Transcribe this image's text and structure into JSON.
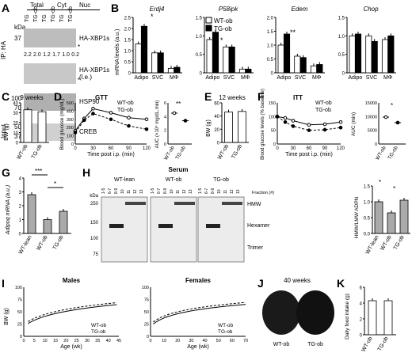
{
  "panel_labels": [
    "A",
    "B",
    "C",
    "D",
    "E",
    "F",
    "G",
    "H",
    "I",
    "J",
    "K"
  ],
  "A": {
    "groups": [
      "Total",
      "Cyt",
      "Nuc"
    ],
    "lanes": [
      "TG",
      "TG-ob",
      "TG",
      "TG-ob",
      "TG",
      "TG-ob"
    ],
    "kda": [
      "kDa",
      "37",
      "100",
      "70",
      "50",
      "37"
    ],
    "ip_label": "IP: HA",
    "input_label": "Input",
    "bands": [
      "HA-XBP1s",
      "HA-XBP1s\n(l.e.)",
      "HSP90",
      "CREB"
    ],
    "ratios": [
      "2.2",
      "2.0",
      "1.2",
      "1.7",
      "1.0",
      "0.2"
    ],
    "star": "*"
  },
  "B": {
    "ylabel": "mRNA levels (a.u.)",
    "legend": [
      "WT-ob",
      "TG-ob"
    ],
    "genes": [
      "Erdj4",
      "P58ipk",
      "Edem",
      "Chop"
    ],
    "categories": [
      "Adipo",
      "SVC",
      "MΦ"
    ],
    "stars": [
      "*",
      "*",
      "**"
    ]
  },
  "C": {
    "title": "9 weeks",
    "ylabel": "BW (g)",
    "categories": [
      "WT-ob",
      "TG-ob"
    ],
    "yticks": [
      "0",
      "10",
      "20",
      "30",
      "40"
    ]
  },
  "D": {
    "title": "GTT",
    "ylabel": "Blood glucose (mg/dL)",
    "xlabel": "Time post i.p. (min)",
    "legend": [
      "WT-ob",
      "TG-ob"
    ],
    "xticks": [
      "0",
      "30",
      "60",
      "90",
      "120"
    ],
    "yticks": [
      "0",
      "100",
      "200",
      "300",
      "400",
      "500"
    ],
    "auc_ylabel": "AUC (×10⁴ mg/dL.min)",
    "auc_cats": [
      "WT-ob",
      "TG-ob"
    ],
    "auc_yticks": [
      "0",
      "2",
      "4",
      "6"
    ],
    "stars": "**"
  },
  "E": {
    "title": "12 weeks",
    "ylabel": "BW (g)",
    "categories": [
      "WT-ob",
      "TG-ob"
    ],
    "yticks": [
      "0",
      "20",
      "40",
      "60"
    ]
  },
  "F": {
    "title": "ITT",
    "ylabel": "Blood glucose levels (% baseline)",
    "xlabel": "Time post i.p. (min)",
    "legend": [
      "WT-ob",
      "TG-ob"
    ],
    "xticks": [
      "0",
      "30",
      "60",
      "90",
      "120"
    ],
    "yticks": [
      "0",
      "50",
      "100",
      "150"
    ],
    "auc_ylabel": "AUC (min)",
    "auc_cats": [
      "WT-ob",
      "TG-ob"
    ],
    "auc_yticks": [
      "0",
      "5000",
      "10000",
      "15000"
    ],
    "stars": "*"
  },
  "G": {
    "ylabel": "Adipoq mRNA (a.u.)",
    "categories": [
      "WT-lean",
      "WT-ob",
      "TG-ob"
    ],
    "yticks": [
      "0",
      "1",
      "2",
      "3",
      "4"
    ],
    "stars": [
      "***",
      "*"
    ]
  },
  "H": {
    "title": "Serum",
    "groups": [
      "WT-lean",
      "WT-ob",
      "TG-ob"
    ],
    "fraction_label": "Fraction (#)",
    "fractions": [
      "1-5",
      "6-7",
      "8-9",
      "10",
      "11",
      "12",
      "13"
    ],
    "kda": [
      "kDa",
      "250",
      "150",
      "100",
      "75"
    ],
    "bands": [
      "HMW",
      "Hexamer",
      "Trimer"
    ],
    "ratio_ylabel": "HMW/LMW ADPN",
    "ratio_cats": [
      "WT-lean",
      "WT-ob",
      "TG-ob"
    ],
    "ratio_yticks": [
      "0.0",
      "0.5",
      "1.0",
      "1.5"
    ],
    "stars": [
      "*",
      "*"
    ]
  },
  "I": {
    "titles": [
      "Males",
      "Females"
    ],
    "ylabel": "BW (g)",
    "xlabel": "Age (wk)",
    "legend": [
      "WT-ob",
      "TG-ob"
    ],
    "xticks_m": [
      "0",
      "5",
      "10",
      "15",
      "20",
      "25",
      "30",
      "35",
      "40",
      "45"
    ],
    "xticks_f": [
      "0",
      "10",
      "20",
      "30",
      "40",
      "50",
      "60",
      "70"
    ],
    "yticks": [
      "0",
      "25",
      "50",
      "75",
      "100"
    ]
  },
  "J": {
    "title": "40 weeks",
    "labels": [
      "WT-ob",
      "TG-ob"
    ]
  },
  "K": {
    "ylabel": "Daily food intake (g)",
    "categories": [
      "WT-ob",
      "TG-ob"
    ],
    "yticks": [
      "0",
      "2",
      "4",
      "6"
    ]
  },
  "chart_data": [
    {
      "type": "bar",
      "panel": "B",
      "title": "Erdj4",
      "categories": [
        "Adipo",
        "SVC",
        "MΦ"
      ],
      "series": [
        {
          "name": "WT-ob",
          "values": [
            1.3,
            0.9,
            0.2
          ]
        },
        {
          "name": "TG-ob",
          "values": [
            2.1,
            0.9,
            0.25
          ]
        }
      ],
      "ylim": [
        0,
        2.5
      ],
      "yticks": [
        "0",
        "0.5",
        "1.0",
        "1.5",
        "2.0",
        "2.5"
      ]
    },
    {
      "type": "bar",
      "panel": "B",
      "title": "P58ipk",
      "categories": [
        "Adipo",
        "SVC",
        "MΦ"
      ],
      "series": [
        {
          "name": "WT-ob",
          "values": [
            0.9,
            0.7,
            0.1
          ]
        },
        {
          "name": "TG-ob",
          "values": [
            1.1,
            0.7,
            0.1
          ]
        }
      ],
      "ylim": [
        0,
        1.5
      ],
      "yticks": [
        "0",
        "0.5",
        "1.0",
        "1.5"
      ]
    },
    {
      "type": "bar",
      "panel": "B",
      "title": "Edem",
      "categories": [
        "Adipo",
        "SVC",
        "MΦ"
      ],
      "series": [
        {
          "name": "WT-ob",
          "values": [
            1.0,
            0.6,
            0.25
          ]
        },
        {
          "name": "TG-ob",
          "values": [
            1.4,
            0.55,
            0.3
          ]
        }
      ],
      "ylim": [
        0,
        2.0
      ],
      "yticks": [
        "0",
        "0.5",
        "1.0",
        "1.5",
        "2.0"
      ]
    },
    {
      "type": "bar",
      "panel": "B",
      "title": "Chop",
      "categories": [
        "Adipo",
        "SVC",
        "MΦ"
      ],
      "series": [
        {
          "name": "WT-ob",
          "values": [
            1.0,
            1.0,
            0.9
          ]
        },
        {
          "name": "TG-ob",
          "values": [
            1.05,
            0.85,
            1.0
          ]
        }
      ],
      "ylim": [
        0,
        1.5
      ],
      "yticks": [
        "0",
        "0.5",
        "1.0",
        "1.5"
      ]
    },
    {
      "type": "bar",
      "panel": "C",
      "categories": [
        "WT-ob",
        "TG-ob"
      ],
      "values": [
        33,
        31
      ],
      "ylim": [
        0,
        40
      ]
    },
    {
      "type": "line",
      "panel": "D",
      "x": [
        0,
        15,
        30,
        60,
        90,
        120
      ],
      "series": [
        {
          "name": "WT-ob",
          "values": [
            160,
            310,
            430,
            380,
            320,
            300
          ]
        },
        {
          "name": "TG-ob",
          "values": [
            140,
            290,
            370,
            300,
            220,
            180
          ]
        }
      ],
      "ylim": [
        0,
        500
      ]
    },
    {
      "type": "scatter",
      "panel": "D-AUC",
      "categories": [
        "WT-ob",
        "TG-ob"
      ],
      "values": [
        4.5,
        3.4
      ],
      "ylim": [
        0,
        6
      ]
    },
    {
      "type": "bar",
      "panel": "E",
      "categories": [
        "WT-ob",
        "TG-ob"
      ],
      "values": [
        46,
        47
      ],
      "ylim": [
        0,
        60
      ]
    },
    {
      "type": "line",
      "panel": "F",
      "x": [
        0,
        15,
        30,
        60,
        90,
        120
      ],
      "series": [
        {
          "name": "WT-ob",
          "values": [
            100,
            95,
            85,
            70,
            72,
            80
          ]
        },
        {
          "name": "TG-ob",
          "values": [
            100,
            80,
            65,
            50,
            52,
            60
          ]
        }
      ],
      "ylim": [
        0,
        150
      ]
    },
    {
      "type": "scatter",
      "panel": "F-AUC",
      "categories": [
        "WT-ob",
        "TG-ob"
      ],
      "values": [
        9800,
        7800
      ],
      "ylim": [
        0,
        15000
      ]
    },
    {
      "type": "bar",
      "panel": "G",
      "categories": [
        "WT-lean",
        "WT-ob",
        "TG-ob"
      ],
      "values": [
        2.8,
        1.0,
        1.6
      ],
      "ylim": [
        0,
        4
      ]
    },
    {
      "type": "bar",
      "panel": "H",
      "categories": [
        "WT-lean",
        "WT-ob",
        "TG-ob"
      ],
      "values": [
        1.0,
        0.65,
        1.05
      ],
      "ylim": [
        0,
        1.5
      ]
    },
    {
      "type": "bar",
      "panel": "K",
      "categories": [
        "WT-ob",
        "TG-ob"
      ],
      "values": [
        4.3,
        4.3
      ],
      "ylim": [
        0,
        6
      ]
    }
  ]
}
